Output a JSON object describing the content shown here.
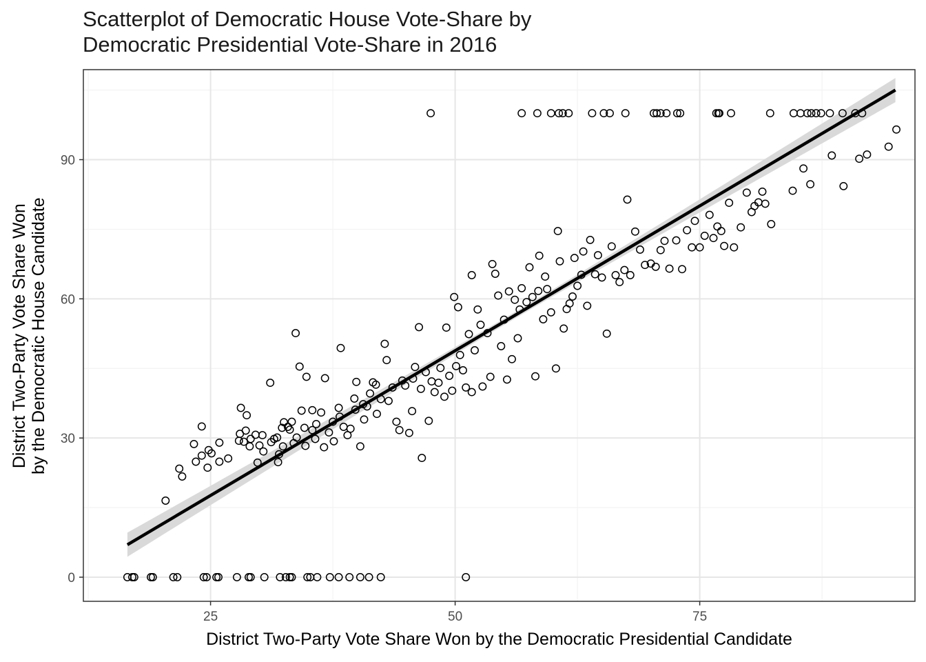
{
  "title_lines": [
    "Scatterplot of Democratic House Vote-Share by",
    "Democratic Presidential Vote-Share in 2016"
  ],
  "chart_data": {
    "type": "scatter",
    "title": "Scatterplot of Democratic House Vote-Share by Democratic Presidential Vote-Share in 2016",
    "xlabel": "District Two-Party Vote Share Won by the Democratic Presidential Candidate",
    "ylabel_lines": [
      "District Two-Party Vote Share Won",
      "by the Democratic House Candidate"
    ],
    "xlim": [
      12,
      97
    ],
    "ylim": [
      -5.2,
      109.4
    ],
    "x_ticks": [
      25,
      50,
      75
    ],
    "y_ticks": [
      0,
      30,
      60,
      90
    ],
    "x_tick_labels": [
      "25",
      "50",
      "75"
    ],
    "y_tick_labels": [
      "0",
      "30",
      "60",
      "90"
    ],
    "grid": true,
    "colors": {
      "point_stroke": "#000000",
      "line": "#000000",
      "ribbon": "#d9d9d9",
      "grid_major": "#e6e6e6",
      "grid_minor": "#f3f3f3",
      "border": "#333333"
    },
    "fit_line": {
      "x": [
        16.5,
        95
      ],
      "y": [
        7,
        105
      ],
      "ci_halfwidth_ends": 2.6,
      "ci_halfwidth_center": 0.7
    },
    "points": [
      [
        16.5,
        0
      ],
      [
        17,
        0
      ],
      [
        17.2,
        0
      ],
      [
        18.9,
        0
      ],
      [
        19.1,
        0
      ],
      [
        21.2,
        0
      ],
      [
        21.6,
        0
      ],
      [
        24.3,
        0
      ],
      [
        24.6,
        0
      ],
      [
        25.6,
        0
      ],
      [
        25.8,
        0
      ],
      [
        27.7,
        0
      ],
      [
        28.9,
        0
      ],
      [
        29.1,
        0
      ],
      [
        30.5,
        0
      ],
      [
        32.1,
        0
      ],
      [
        32.7,
        0
      ],
      [
        33.1,
        0
      ],
      [
        33.3,
        0
      ],
      [
        34.9,
        0
      ],
      [
        35.2,
        0
      ],
      [
        35.9,
        0
      ],
      [
        37.2,
        0
      ],
      [
        38.1,
        0
      ],
      [
        39.2,
        0
      ],
      [
        40.3,
        0
      ],
      [
        41.2,
        0
      ],
      [
        42.4,
        0
      ],
      [
        51.1,
        0
      ],
      [
        47.5,
        100
      ],
      [
        56.8,
        100
      ],
      [
        58.4,
        100
      ],
      [
        59.8,
        100
      ],
      [
        60.6,
        100
      ],
      [
        61,
        100
      ],
      [
        61.6,
        100
      ],
      [
        64,
        100
      ],
      [
        65.2,
        100
      ],
      [
        65.8,
        100
      ],
      [
        67.4,
        100
      ],
      [
        70.3,
        100
      ],
      [
        70.6,
        100
      ],
      [
        71,
        100
      ],
      [
        71.6,
        100
      ],
      [
        72.7,
        100
      ],
      [
        73,
        100
      ],
      [
        76.7,
        100
      ],
      [
        76.9,
        100
      ],
      [
        77,
        100
      ],
      [
        78.2,
        100
      ],
      [
        82.2,
        100
      ],
      [
        84.6,
        100
      ],
      [
        85.3,
        100
      ],
      [
        86,
        100
      ],
      [
        86.4,
        100
      ],
      [
        86.9,
        100
      ],
      [
        87.4,
        100
      ],
      [
        88.3,
        100
      ],
      [
        89.6,
        100
      ],
      [
        90.9,
        100
      ],
      [
        91.6,
        100
      ],
      [
        20.4,
        16.5
      ],
      [
        21.8,
        23.4
      ],
      [
        22.1,
        21.7
      ],
      [
        23.3,
        28.7
      ],
      [
        23.5,
        24.9
      ],
      [
        24.1,
        32.5
      ],
      [
        24.1,
        26.2
      ],
      [
        24.7,
        23.6
      ],
      [
        24.8,
        27.4
      ],
      [
        25.1,
        26.7
      ],
      [
        25.9,
        24.9
      ],
      [
        25.9,
        29
      ],
      [
        26.8,
        25.6
      ],
      [
        27.9,
        29.4
      ],
      [
        28,
        30.9
      ],
      [
        28.1,
        36.5
      ],
      [
        28.4,
        29.2
      ],
      [
        28.6,
        31.6
      ],
      [
        28.7,
        34.9
      ],
      [
        29,
        28.2
      ],
      [
        29.1,
        29.8
      ],
      [
        29.6,
        30.7
      ],
      [
        29.8,
        24.7
      ],
      [
        30,
        28.4
      ],
      [
        30.3,
        30.6
      ],
      [
        30.4,
        27.1
      ],
      [
        31.1,
        41.9
      ],
      [
        31.2,
        29.1
      ],
      [
        31.5,
        29.8
      ],
      [
        31.8,
        30.1
      ],
      [
        31.9,
        24.8
      ],
      [
        32,
        26.5
      ],
      [
        32.3,
        32.2
      ],
      [
        32.4,
        28.2
      ],
      [
        32.5,
        33.4
      ],
      [
        32.9,
        32.4
      ],
      [
        33.1,
        31.8
      ],
      [
        33.3,
        33.5
      ],
      [
        33.5,
        28.9
      ],
      [
        33.7,
        52.6
      ],
      [
        33.8,
        30.1
      ],
      [
        34.1,
        45.4
      ],
      [
        34.3,
        35.9
      ],
      [
        34.6,
        32.2
      ],
      [
        34.7,
        28.3
      ],
      [
        34.8,
        43.2
      ],
      [
        35.4,
        36
      ],
      [
        35.4,
        31.7
      ],
      [
        35.7,
        29.8
      ],
      [
        35.8,
        33
      ],
      [
        36.3,
        35.5
      ],
      [
        36.6,
        28
      ],
      [
        36.7,
        42.9
      ],
      [
        37.1,
        31.2
      ],
      [
        37.5,
        33.5
      ],
      [
        37.6,
        29.3
      ],
      [
        38.1,
        36.5
      ],
      [
        38.2,
        34.6
      ],
      [
        38.3,
        49.4
      ],
      [
        38.6,
        32.4
      ],
      [
        39,
        30.6
      ],
      [
        39.3,
        32
      ],
      [
        39.7,
        38.5
      ],
      [
        39.8,
        36.1
      ],
      [
        39.9,
        42.1
      ],
      [
        40.3,
        28.2
      ],
      [
        40.6,
        37.3
      ],
      [
        40.7,
        34
      ],
      [
        41,
        36.8
      ],
      [
        41.3,
        39.6
      ],
      [
        41.6,
        42
      ],
      [
        41.9,
        41.5
      ],
      [
        42,
        35.2
      ],
      [
        42.4,
        38.4
      ],
      [
        42.8,
        50.3
      ],
      [
        43,
        46.8
      ],
      [
        43.2,
        38
      ],
      [
        43.6,
        40.9
      ],
      [
        44,
        33.5
      ],
      [
        44.3,
        31.7
      ],
      [
        44.6,
        42.4
      ],
      [
        44.9,
        41.3
      ],
      [
        45.3,
        31.1
      ],
      [
        45.6,
        35.8
      ],
      [
        45.7,
        42.8
      ],
      [
        45.9,
        45.3
      ],
      [
        46.3,
        53.9
      ],
      [
        46.5,
        40.6
      ],
      [
        46.6,
        25.7
      ],
      [
        47,
        44.2
      ],
      [
        47.3,
        33.7
      ],
      [
        47.6,
        42.2
      ],
      [
        47.9,
        39.9
      ],
      [
        48.3,
        41.9
      ],
      [
        48.5,
        45.1
      ],
      [
        48.9,
        38.9
      ],
      [
        49.1,
        53.8
      ],
      [
        49.4,
        43.4
      ],
      [
        49.7,
        40.2
      ],
      [
        49.9,
        60.4
      ],
      [
        50.1,
        45.5
      ],
      [
        50.3,
        58.2
      ],
      [
        50.5,
        47.9
      ],
      [
        50.8,
        44.6
      ],
      [
        51.1,
        40.9
      ],
      [
        51.4,
        52.4
      ],
      [
        51.7,
        39.9
      ],
      [
        51.7,
        65.1
      ],
      [
        52,
        48.9
      ],
      [
        52.3,
        57.7
      ],
      [
        52.6,
        54.4
      ],
      [
        52.8,
        41.1
      ],
      [
        53.3,
        52.6
      ],
      [
        53.6,
        43.2
      ],
      [
        53.8,
        67.5
      ],
      [
        54.1,
        65.4
      ],
      [
        54.4,
        60.7
      ],
      [
        54.7,
        49.8
      ],
      [
        55,
        55.5
      ],
      [
        55.3,
        42.6
      ],
      [
        55.5,
        61.6
      ],
      [
        55.8,
        47
      ],
      [
        56.1,
        59.8
      ],
      [
        56.4,
        51.5
      ],
      [
        56.6,
        57.7
      ],
      [
        56.8,
        62.3
      ],
      [
        57.3,
        59.3
      ],
      [
        57.6,
        66.8
      ],
      [
        57.9,
        60.4
      ],
      [
        58.2,
        43.3
      ],
      [
        58.5,
        61.7
      ],
      [
        58.6,
        69.3
      ],
      [
        59,
        55.6
      ],
      [
        59.2,
        64.8
      ],
      [
        59.4,
        62.1
      ],
      [
        59.8,
        57.1
      ],
      [
        60.3,
        45
      ],
      [
        60.5,
        74.6
      ],
      [
        60.7,
        68.1
      ],
      [
        61.1,
        53.6
      ],
      [
        61.4,
        57.8
      ],
      [
        61.7,
        59
      ],
      [
        62,
        60.5
      ],
      [
        62.2,
        68.8
      ],
      [
        62.5,
        62.8
      ],
      [
        62.9,
        65.2
      ],
      [
        63.1,
        70.2
      ],
      [
        63.5,
        58.5
      ],
      [
        63.8,
        72.7
      ],
      [
        64.3,
        65.3
      ],
      [
        64.6,
        69.4
      ],
      [
        65,
        64.6
      ],
      [
        65.5,
        52.5
      ],
      [
        66,
        71.3
      ],
      [
        66.4,
        65.1
      ],
      [
        66.8,
        63.6
      ],
      [
        67.3,
        66.2
      ],
      [
        67.6,
        81.4
      ],
      [
        67.9,
        65.1
      ],
      [
        68.4,
        74.5
      ],
      [
        68.9,
        70.6
      ],
      [
        69.4,
        67.3
      ],
      [
        70,
        67.6
      ],
      [
        70.5,
        66.9
      ],
      [
        71,
        70.5
      ],
      [
        71.4,
        72.5
      ],
      [
        71.9,
        66.5
      ],
      [
        72.6,
        72.6
      ],
      [
        73.2,
        66.4
      ],
      [
        73.7,
        74.8
      ],
      [
        74.2,
        71.1
      ],
      [
        74.5,
        76.8
      ],
      [
        75,
        71.1
      ],
      [
        75.5,
        73.6
      ],
      [
        76,
        78.1
      ],
      [
        76.4,
        73.1
      ],
      [
        76.8,
        75.6
      ],
      [
        77.2,
        74.6
      ],
      [
        77.5,
        71.4
      ],
      [
        78,
        80.7
      ],
      [
        78.5,
        71.1
      ],
      [
        79.2,
        75.4
      ],
      [
        79.8,
        82.9
      ],
      [
        80.3,
        78.7
      ],
      [
        80.6,
        80
      ],
      [
        81,
        80.8
      ],
      [
        81.4,
        83.1
      ],
      [
        81.7,
        80.5
      ],
      [
        82.3,
        76.1
      ],
      [
        84.5,
        83.3
      ],
      [
        85.6,
        88.1
      ],
      [
        86.3,
        84.7
      ],
      [
        88.5,
        90.9
      ],
      [
        89.7,
        84.3
      ],
      [
        91.3,
        90.2
      ],
      [
        92.1,
        91.1
      ],
      [
        94.3,
        92.8
      ],
      [
        95.1,
        96.5
      ]
    ]
  }
}
